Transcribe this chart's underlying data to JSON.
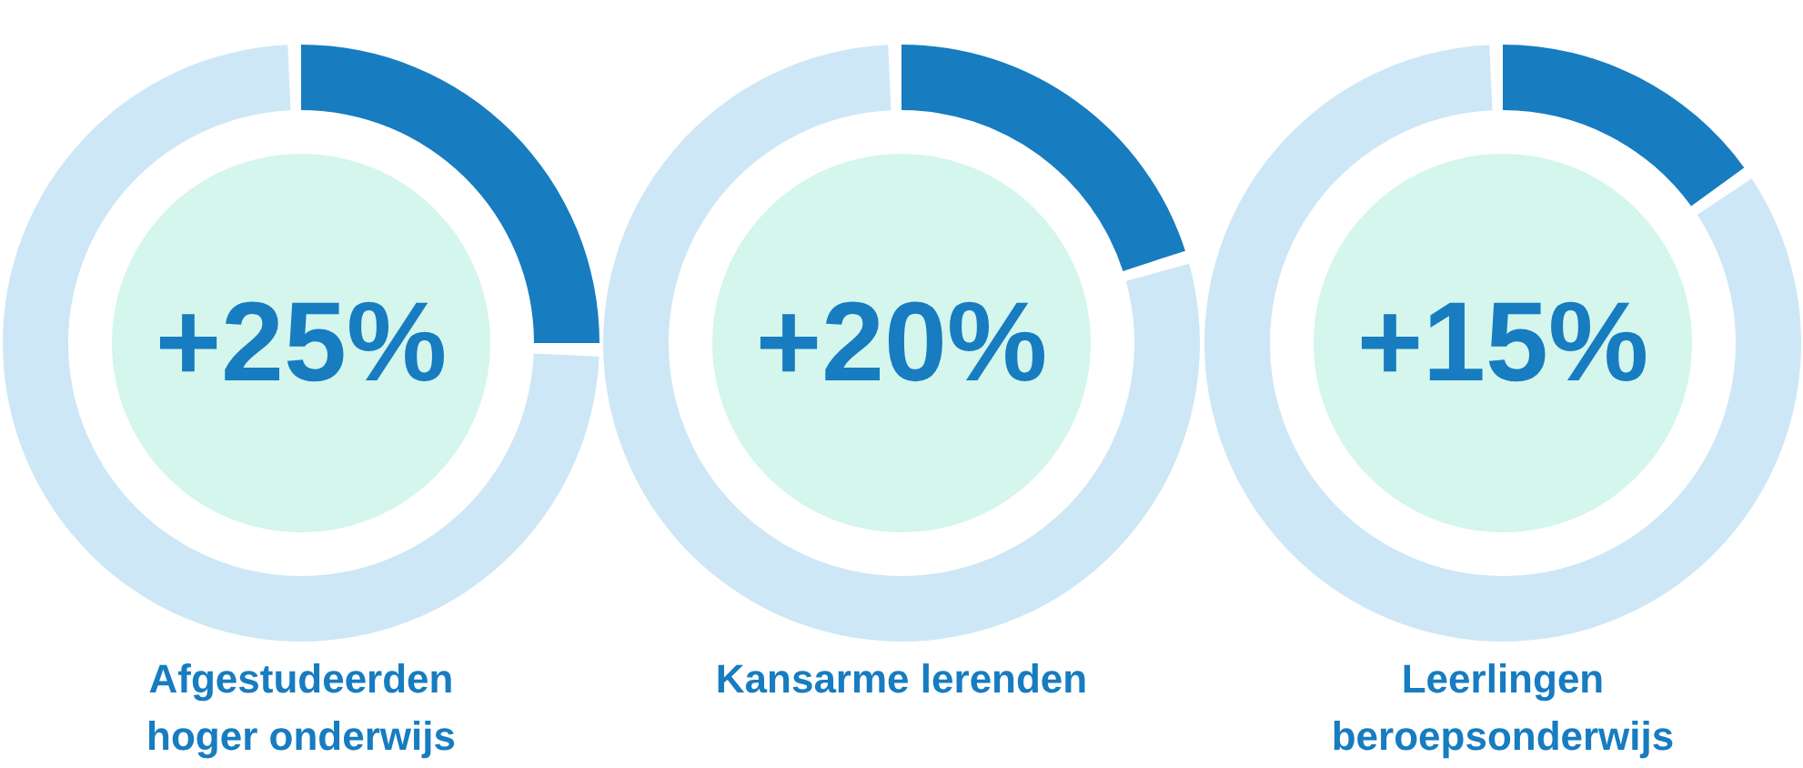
{
  "chart_data": [
    {
      "type": "donut",
      "title": "Afgestudeerden hoger onderwijs",
      "categories": [
        null,
        null
      ],
      "values": [
        25,
        75
      ],
      "colors": [
        "#177cc0",
        "#cde7f6"
      ],
      "annotations": [
        "+25%"
      ]
    },
    {
      "type": "donut",
      "title": "Kansarme lerenden",
      "categories": [
        null,
        null
      ],
      "values": [
        20,
        80
      ],
      "colors": [
        "#177cc0",
        "#cde7f6"
      ],
      "annotations": [
        "+20%"
      ]
    },
    {
      "type": "donut",
      "title": "Leerlingen beroepsonderwijs",
      "categories": [
        null,
        null
      ],
      "values": [
        15,
        85
      ],
      "colors": [
        "#177cc0",
        "#cde7f6"
      ],
      "annotations": [
        "+15%"
      ]
    }
  ]
}
